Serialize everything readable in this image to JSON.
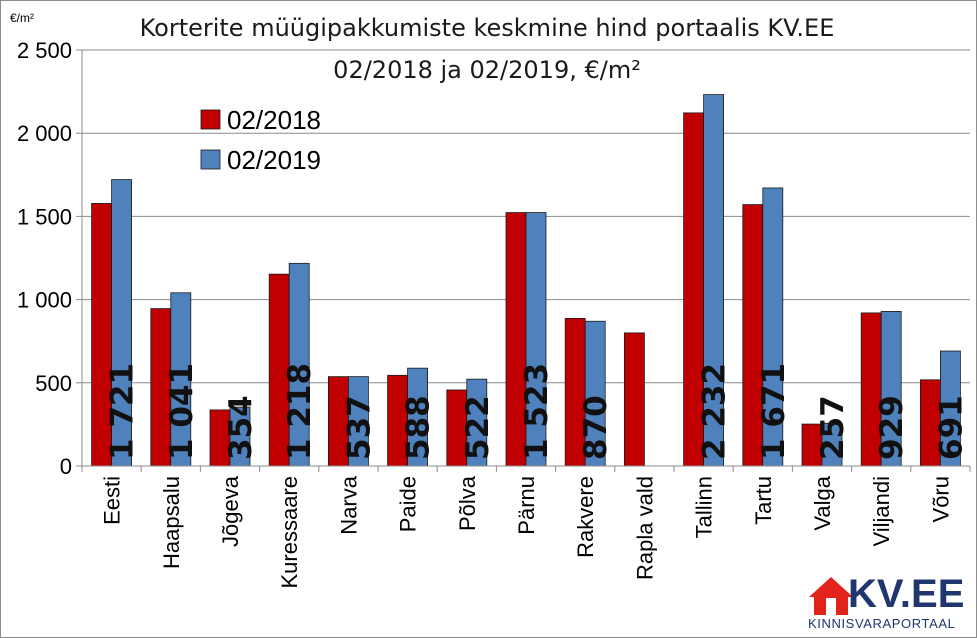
{
  "chart_data": {
    "type": "bar",
    "title": "Korterite müügipakkumiste keskmine hind portaalis KV.EE",
    "subtitle": "02/2018 ja 02/2019, €/m²",
    "unit_label": "€/m²",
    "ylim": [
      0,
      2500
    ],
    "yticks": [
      0,
      500,
      1000,
      1500,
      2000,
      2500
    ],
    "ytick_labels": [
      "0",
      "500",
      "1 000",
      "1 500",
      "2 000",
      "2 500"
    ],
    "grid": true,
    "legend_position": "top-left",
    "categories": [
      "Eesti",
      "Haapsalu",
      "Jõgeva",
      "Kuressaare",
      "Narva",
      "Paide",
      "Põlva",
      "Pärnu",
      "Rakvere",
      "Rapla vald",
      "Tallinn",
      "Tartu",
      "Valga",
      "Viljandi",
      "Võru"
    ],
    "series": [
      {
        "name": "02/2018",
        "color": "#c00000",
        "values": [
          1578,
          946,
          337,
          1153,
          537,
          545,
          457,
          1523,
          887,
          800,
          2122,
          1571,
          252,
          920,
          518
        ]
      },
      {
        "name": "02/2019",
        "color": "#4f81bd",
        "values": [
          1721,
          1041,
          354,
          1218,
          537,
          588,
          522,
          1523,
          870,
          null,
          2232,
          1671,
          257,
          929,
          691
        ]
      }
    ],
    "data_labels": [
      "1 721",
      "1 041",
      "354",
      "1 218",
      "537",
      "588",
      "522",
      "1 523",
      "870",
      "",
      "2 232",
      "1 671",
      "257",
      "929",
      "691"
    ]
  },
  "logo": {
    "text": "KV.EE",
    "subtext": "KINNISVARAPORTAAL",
    "colors": {
      "house": "#e2231a",
      "text": "#20366f"
    }
  }
}
